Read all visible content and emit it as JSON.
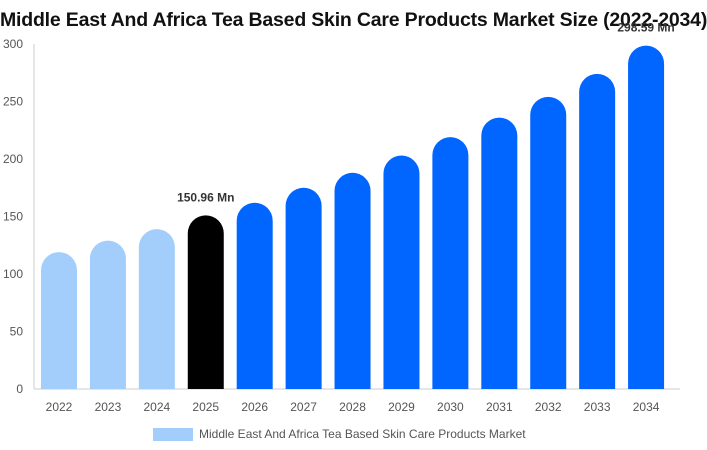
{
  "chart_data": {
    "type": "bar",
    "title": "Middle East And Africa Tea Based Skin Care Products Market Size (2022-2034)",
    "xlabel": "",
    "ylabel": "",
    "ylim": [
      0,
      300
    ],
    "yticks": [
      0,
      50,
      100,
      150,
      200,
      250,
      300
    ],
    "categories": [
      "2022",
      "2023",
      "2024",
      "2025",
      "2026",
      "2027",
      "2028",
      "2029",
      "2030",
      "2031",
      "2032",
      "2033",
      "2034"
    ],
    "series": [
      {
        "name": "Middle East And Africa Tea Based Skin Care Products Market",
        "values": [
          119,
          129,
          139,
          150.96,
          162,
          175,
          188,
          203,
          219,
          236,
          254,
          274,
          298.59
        ]
      }
    ],
    "data_labels": [
      {
        "category": "2025",
        "text": "150.96 Mn"
      },
      {
        "category": "2034",
        "text": "298.59 Mn"
      }
    ],
    "colors": {
      "historical": "#a3cdfb",
      "current": "#000000",
      "forecast": "#0066ff",
      "legend": "#a3cdfb"
    },
    "grid": false,
    "legend_position": "bottom"
  }
}
